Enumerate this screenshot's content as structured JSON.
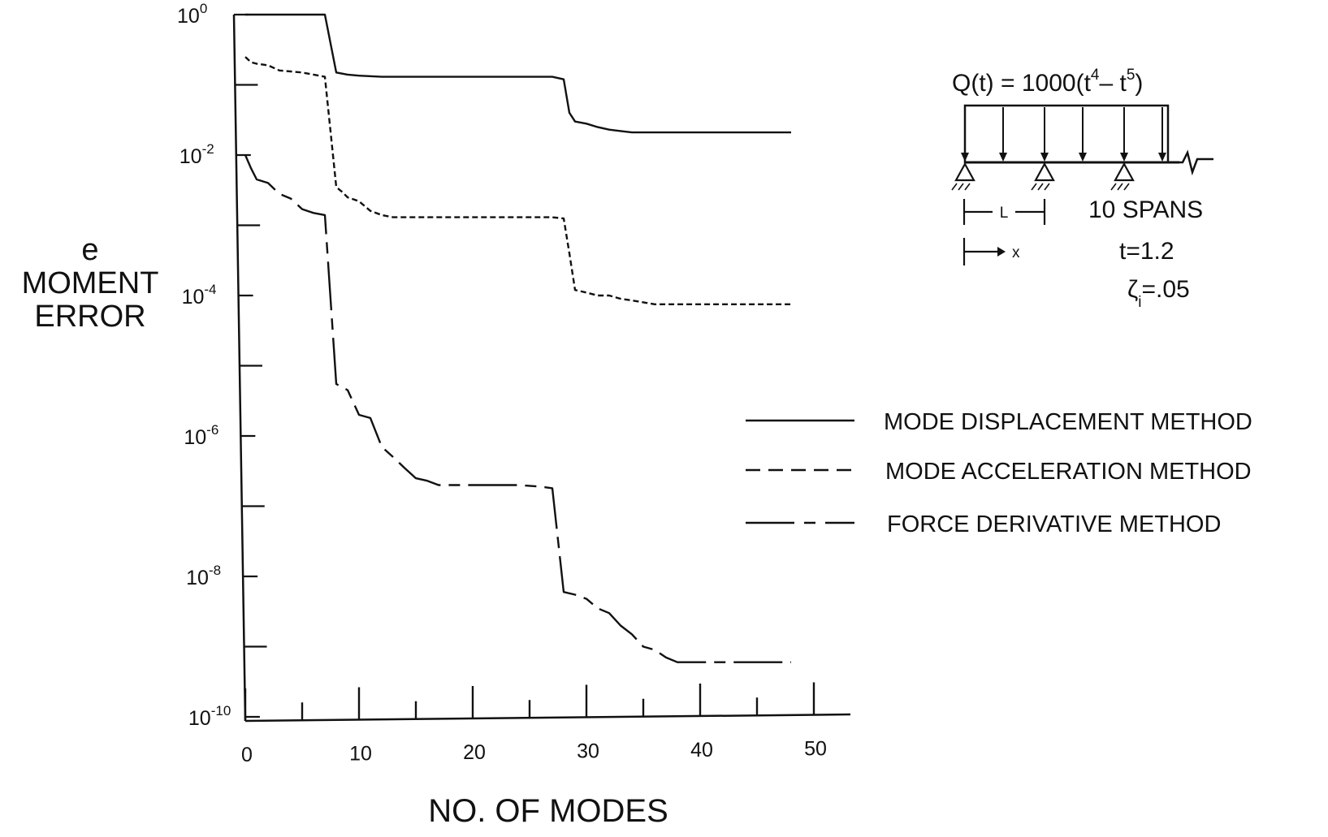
{
  "chart_data": {
    "type": "line",
    "x_label": "NO. OF MODES",
    "y_label": [
      "e",
      "MOMENT",
      "ERROR"
    ],
    "xlim": [
      0,
      50
    ],
    "ylim_exp": [
      -10,
      0
    ],
    "y_scale": "log",
    "x_ticks": [
      "0",
      "10",
      "20",
      "30",
      "40",
      "50"
    ],
    "y_ticks": [
      {
        "base": "10",
        "exp": "0"
      },
      {
        "base": "10",
        "exp": "-2"
      },
      {
        "base": "10",
        "exp": "-4"
      },
      {
        "base": "10",
        "exp": "-6"
      },
      {
        "base": "10",
        "exp": "-8"
      },
      {
        "base": "10",
        "exp": "-10"
      }
    ],
    "legend_position": "right",
    "series": [
      {
        "name": "MODE DISPLACEMENT METHOD",
        "style": "solid",
        "x": [
          0,
          1,
          2,
          3,
          4,
          5,
          6,
          7,
          8,
          9,
          10,
          12,
          14,
          16,
          18,
          20,
          22,
          24,
          26,
          27,
          28,
          28.5,
          29,
          30,
          31,
          32,
          33,
          34,
          36,
          38,
          40,
          42,
          44,
          46,
          48
        ],
        "y": [
          1.0,
          1.0,
          1.0,
          1.0,
          1.0,
          1.0,
          1.0,
          1.0,
          0.15,
          0.14,
          0.135,
          0.13,
          0.13,
          0.13,
          0.13,
          0.13,
          0.13,
          0.13,
          0.13,
          0.13,
          0.12,
          0.04,
          0.03,
          0.028,
          0.025,
          0.023,
          0.022,
          0.021,
          0.021,
          0.021,
          0.021,
          0.021,
          0.021,
          0.021,
          0.021
        ]
      },
      {
        "name": "MODE ACCELERATION METHOD",
        "style": "dashed",
        "x": [
          0,
          0.5,
          1,
          2,
          3,
          4,
          5,
          6,
          7,
          8,
          8.5,
          9,
          10,
          11,
          12,
          13,
          14,
          16,
          18,
          20,
          22,
          24,
          26,
          27,
          28,
          28.5,
          29,
          30,
          31,
          32,
          33,
          34,
          35,
          36,
          38,
          40,
          42,
          44,
          46,
          48
        ],
        "y": [
          0.25,
          0.21,
          0.2,
          0.19,
          0.16,
          0.155,
          0.15,
          0.14,
          0.13,
          0.0035,
          0.003,
          0.0025,
          0.0022,
          0.0016,
          0.0014,
          0.0013,
          0.0013,
          0.0013,
          0.0013,
          0.0013,
          0.0013,
          0.0013,
          0.0013,
          0.0013,
          0.00125,
          0.0004,
          0.00012,
          0.00011,
          0.0001,
          0.0001,
          9e-05,
          8.5e-05,
          8e-05,
          7.5e-05,
          7.5e-05,
          7.5e-05,
          7.5e-05,
          7.5e-05,
          7.5e-05,
          7.5e-05
        ]
      },
      {
        "name": "FORCE DERIVATIVE METHOD",
        "style": "long-short-dash",
        "x": [
          0,
          0.5,
          1,
          2,
          3,
          4,
          5,
          6,
          7,
          8,
          9,
          10,
          11,
          12,
          13,
          14,
          15,
          16,
          17,
          18,
          20,
          22,
          24,
          26,
          27,
          28,
          29,
          30,
          31,
          32,
          33,
          34,
          35,
          36,
          37,
          38,
          40,
          42,
          44,
          46,
          48
        ],
        "y": [
          0.01,
          0.0065,
          0.0045,
          0.004,
          0.0028,
          0.0024,
          0.0017,
          0.0015,
          0.0014,
          5.5e-06,
          4.5e-06,
          2e-06,
          1.8e-06,
          7e-07,
          5e-07,
          3.5e-07,
          2.5e-07,
          2.3e-07,
          2e-07,
          2e-07,
          2e-07,
          2e-07,
          2e-07,
          1.9e-07,
          1.8e-07,
          6e-09,
          5.5e-09,
          4.8e-09,
          3.5e-09,
          3e-09,
          2e-09,
          1.5e-09,
          1e-09,
          9e-10,
          7e-10,
          6e-10,
          6e-10,
          6e-10,
          6e-10,
          6e-10,
          6e-10
        ]
      }
    ]
  },
  "inset": {
    "load_formula": {
      "prefix": "Q(t) = 1000(t",
      "exp1": "4",
      "middle": "– t",
      "exp2": "5",
      "suffix": ")"
    },
    "span_label": "L",
    "x_label": "x",
    "spans_text": "10  SPANS",
    "t_text": "t=1.2",
    "zeta_symbol": "ζ",
    "zeta_sub": "i",
    "zeta_value": "=.05"
  }
}
